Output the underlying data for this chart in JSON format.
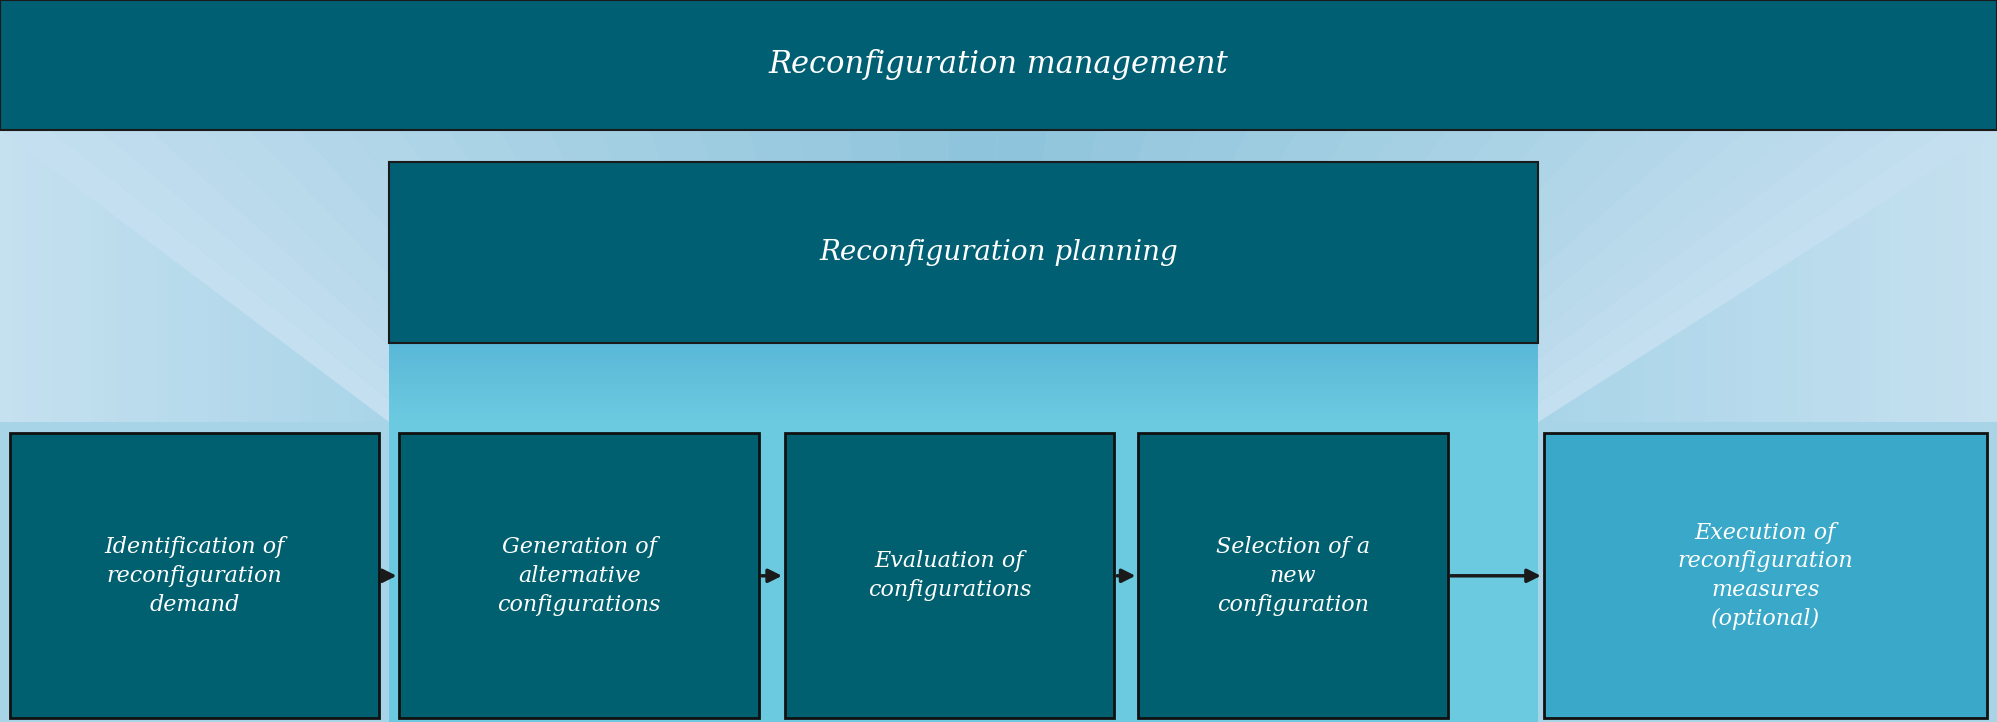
{
  "fig_width": 19.97,
  "fig_height": 7.22,
  "bg_color": "#8ec4dc",
  "dark_teal": "#005f73",
  "box_dark": "#006070",
  "box_last": "#3aa8c8",
  "text_color": "#ffffff",
  "arrow_color": "#1a1a1a",
  "light_blue_outer": "#a8d4e8",
  "light_blue_funnel": "#c5e0ef",
  "medium_blue_inner": "#5ab8d8",
  "management_label": "Reconfiguration management",
  "planning_label": "Reconfiguration planning",
  "box_labels": [
    "Identification of\nreconfiguration\ndemand",
    "Generation of\nalternative\nconfigurations",
    "Evaluation of\nconfigurations",
    "Selection of a\nnew\nconfiguration",
    "Execution of\nreconfiguration\nmeasures\n(optional)"
  ]
}
